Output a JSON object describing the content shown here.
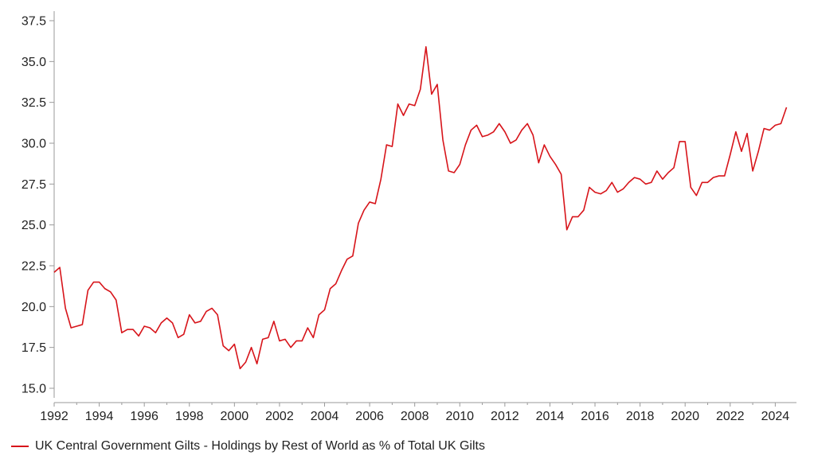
{
  "chart_data": {
    "type": "line",
    "title": "",
    "xlabel": "",
    "ylabel": "",
    "xlim": [
      1992,
      2024.8
    ],
    "ylim": [
      15.0,
      37.5
    ],
    "x_ticks": [
      "1992",
      "1994",
      "1996",
      "1998",
      "2000",
      "2002",
      "2004",
      "2006",
      "2008",
      "2010",
      "2012",
      "2014",
      "2016",
      "2018",
      "2020",
      "2022",
      "2024"
    ],
    "y_ticks": [
      "15.0",
      "17.5",
      "20.0",
      "22.5",
      "25.0",
      "27.5",
      "30.0",
      "32.5",
      "35.0",
      "37.5"
    ],
    "grid": false,
    "legend": "bottom-left",
    "series": [
      {
        "name": "UK Central Government Gilts - Holdings by Rest of World as % of Total UK Gilts",
        "color": "#d7141a",
        "x": [
          1992.0,
          1992.25,
          1992.5,
          1992.75,
          1993.0,
          1993.25,
          1993.5,
          1993.75,
          1994.0,
          1994.25,
          1994.5,
          1994.75,
          1995.0,
          1995.25,
          1995.5,
          1995.75,
          1996.0,
          1996.25,
          1996.5,
          1996.75,
          1997.0,
          1997.25,
          1997.5,
          1997.75,
          1998.0,
          1998.25,
          1998.5,
          1998.75,
          1999.0,
          1999.25,
          1999.5,
          1999.75,
          2000.0,
          2000.25,
          2000.5,
          2000.75,
          2001.0,
          2001.25,
          2001.5,
          2001.75,
          2002.0,
          2002.25,
          2002.5,
          2002.75,
          2003.0,
          2003.25,
          2003.5,
          2003.75,
          2004.0,
          2004.25,
          2004.5,
          2004.75,
          2005.0,
          2005.25,
          2005.5,
          2005.75,
          2006.0,
          2006.25,
          2006.5,
          2006.75,
          2007.0,
          2007.25,
          2007.5,
          2007.75,
          2008.0,
          2008.25,
          2008.5,
          2008.75,
          2009.0,
          2009.25,
          2009.5,
          2009.75,
          2010.0,
          2010.25,
          2010.5,
          2010.75,
          2011.0,
          2011.25,
          2011.5,
          2011.75,
          2012.0,
          2012.25,
          2012.5,
          2012.75,
          2013.0,
          2013.25,
          2013.5,
          2013.75,
          2014.0,
          2014.25,
          2014.5,
          2014.75,
          2015.0,
          2015.25,
          2015.5,
          2015.75,
          2016.0,
          2016.25,
          2016.5,
          2016.75,
          2017.0,
          2017.25,
          2017.5,
          2017.75,
          2018.0,
          2018.25,
          2018.5,
          2018.75,
          2019.0,
          2019.25,
          2019.5,
          2019.75,
          2020.0,
          2020.25,
          2020.5,
          2020.75,
          2021.0,
          2021.25,
          2021.5,
          2021.75,
          2022.0,
          2022.25,
          2022.5,
          2022.75,
          2023.0,
          2023.25,
          2023.5,
          2023.75,
          2024.0,
          2024.25,
          2024.5
        ],
        "y": [
          22.1,
          22.4,
          19.9,
          18.7,
          18.8,
          18.9,
          21.0,
          21.5,
          21.5,
          21.1,
          20.9,
          20.4,
          18.4,
          18.6,
          18.6,
          18.2,
          18.8,
          18.7,
          18.4,
          19.0,
          19.3,
          19.0,
          18.1,
          18.3,
          19.5,
          19.0,
          19.1,
          19.7,
          19.9,
          19.5,
          17.6,
          17.3,
          17.7,
          16.2,
          16.6,
          17.5,
          16.5,
          18.0,
          18.1,
          19.1,
          17.9,
          18.0,
          17.5,
          17.9,
          17.9,
          18.7,
          18.1,
          19.5,
          19.8,
          21.1,
          21.4,
          22.2,
          22.9,
          23.1,
          25.1,
          25.9,
          26.4,
          26.3,
          27.8,
          29.9,
          29.8,
          32.4,
          31.7,
          32.4,
          32.3,
          33.3,
          35.9,
          33.0,
          33.6,
          30.2,
          28.3,
          28.2,
          28.7,
          29.9,
          30.8,
          31.1,
          30.4,
          30.5,
          30.7,
          31.2,
          30.7,
          30.0,
          30.2,
          30.8,
          31.2,
          30.5,
          28.8,
          29.9,
          29.2,
          28.7,
          28.1,
          24.7,
          25.5,
          25.5,
          25.9,
          27.3,
          27.0,
          26.9,
          27.1,
          27.6,
          27.0,
          27.2,
          27.6,
          27.9,
          27.8,
          27.5,
          27.6,
          28.3,
          27.8,
          28.2,
          28.5,
          30.1,
          30.1,
          27.3,
          26.8,
          27.6,
          27.6,
          27.9,
          28.0,
          28.0,
          29.3,
          30.7,
          29.5,
          30.6,
          28.3,
          29.5,
          30.9,
          30.8,
          31.1,
          31.2,
          32.2
        ]
      }
    ]
  }
}
